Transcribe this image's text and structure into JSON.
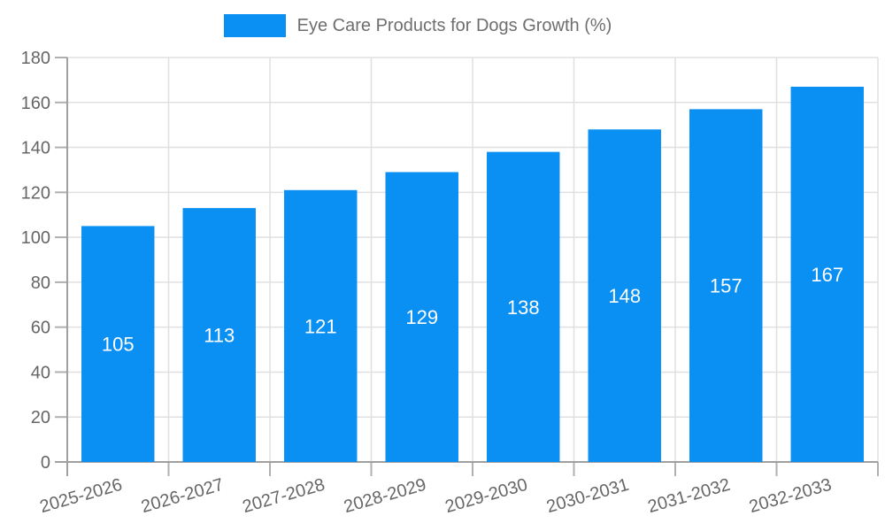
{
  "legend": {
    "label": "Eye Care Products for Dogs Growth (%)"
  },
  "colors": {
    "bar": "#0A8FF2",
    "grid": "#e0e0e0",
    "axis": "#a0a0a0",
    "tick": "#b0b0b0",
    "axis_text": "#666666",
    "legend_text": "#6e6e6e",
    "bar_label": "#ffffff",
    "background": "#ffffff"
  },
  "chart_data": {
    "type": "bar",
    "title": "Eye Care Products for Dogs Growth (%)",
    "categories": [
      "2025-2026",
      "2026-2027",
      "2027-2028",
      "2028-2029",
      "2029-2030",
      "2030-2031",
      "2031-2032",
      "2032-2033"
    ],
    "values": [
      105,
      113,
      121,
      129,
      138,
      148,
      157,
      167
    ],
    "series_name": "Eye Care Products for Dogs Growth (%)",
    "xlabel": "",
    "ylabel": "",
    "ylim": [
      0,
      180
    ],
    "yticks": [
      0,
      20,
      40,
      60,
      80,
      100,
      120,
      140,
      160,
      180
    ],
    "grid": true,
    "data_labels": "inside-center-white",
    "x_label_rotation_deg": -16,
    "legend_position": "top-center"
  }
}
